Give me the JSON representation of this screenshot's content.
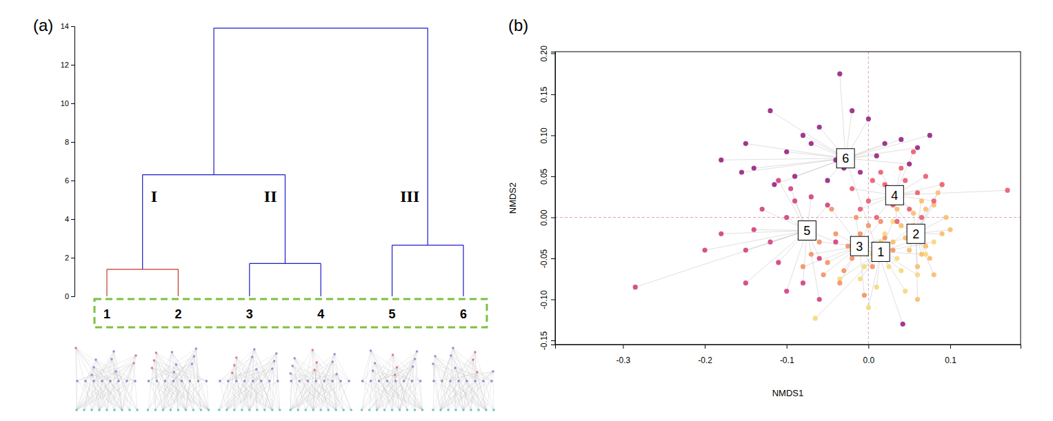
{
  "chart_data": [
    {
      "type": "dendrogram",
      "title": "(a)",
      "color": "#1a1acc",
      "ylim": [
        0,
        14
      ],
      "yticks": [
        0,
        2,
        4,
        6,
        8,
        10,
        12,
        14
      ],
      "tree": {
        "height": 13.9,
        "children": [
          {
            "height": 6.3,
            "children": [
              {
                "height": 1.4,
                "label": "I",
                "color": "#c0392b",
                "children": [
                  "1",
                  "2"
                ]
              },
              {
                "height": 1.7,
                "label": "II",
                "children": [
                  "3",
                  "4"
                ]
              }
            ]
          },
          {
            "height": 2.65,
            "label": "III",
            "children": [
              "5",
              "6"
            ]
          }
        ]
      }
    },
    {
      "type": "scatter",
      "title": "(b)",
      "x_label": "NMDS1",
      "y_label": "NMDS2",
      "xlim": [
        -0.383,
        0.186
      ],
      "xticks": [
        -0.3,
        -0.2,
        -0.1,
        {
          "value": 0,
          "label": "0.0"
        },
        0.1
      ],
      "ylim": [
        -0.155,
        0.202
      ],
      "yticks": [
        -0.15,
        {
          "value": -0.1,
          "label": "-0.10"
        },
        -0.05,
        {
          "value": 0,
          "label": "0.00"
        },
        0.05,
        {
          "value": 0.1,
          "label": "0.10"
        },
        0.15,
        {
          "value": 0.2,
          "label": "0.20"
        }
      ],
      "ref_lines": [
        {
          "axis": "x",
          "value": 0
        },
        {
          "axis": "y",
          "value": 0
        }
      ],
      "marker": "circle",
      "series": [
        {
          "name": "1",
          "color": "#f6dc86",
          "centroid_x": 0.015,
          "centroid_y": -0.042,
          "x": [
            0.02,
            0.035,
            -0.005,
            0.05,
            0.01,
            0.06,
            -0.02,
            0.03,
            0.045,
            0.0,
            0.07,
            0.015,
            -0.01,
            0.025,
            0.055,
            -0.065,
            0.04,
            0.005,
            0.08,
            -0.035
          ],
          "y": [
            -0.02,
            -0.05,
            -0.06,
            -0.03,
            -0.085,
            -0.07,
            -0.04,
            -0.005,
            -0.09,
            -0.11,
            -0.045,
            -0.03,
            -0.075,
            -0.06,
            -0.01,
            -0.123,
            -0.065,
            -0.045,
            -0.03,
            -0.075
          ]
        },
        {
          "name": "2",
          "color": "#f9c27a",
          "centroid_x": 0.058,
          "centroid_y": -0.02,
          "x": [
            0.07,
            0.09,
            0.05,
            0.085,
            0.06,
            0.095,
            0.04,
            0.075,
            0.065,
            0.1,
            0.03,
            0.08,
            0.055,
            0.045,
            0.09,
            0.035,
            0.07,
            0.06,
            0.08,
            0.065
          ],
          "y": [
            0.01,
            -0.02,
            -0.04,
            0.03,
            -0.06,
            0.0,
            -0.01,
            -0.05,
            0.02,
            -0.015,
            -0.03,
            -0.07,
            0.005,
            -0.025,
            0.04,
            0.01,
            -0.035,
            -0.1,
            0.015,
            -0.045
          ]
        },
        {
          "name": "3",
          "color": "#f59b72",
          "centroid_x": -0.011,
          "centroid_y": -0.035,
          "x": [
            -0.04,
            -0.02,
            0.0,
            -0.06,
            -0.03,
            0.01,
            -0.05,
            -0.015,
            0.02,
            -0.07,
            -0.035,
            0.005,
            -0.025,
            -0.045,
            0.03,
            -0.01,
            -0.055,
            0.015,
            -0.08,
            -0.005
          ],
          "y": [
            -0.02,
            -0.05,
            -0.01,
            -0.03,
            -0.065,
            -0.045,
            -0.055,
            0.0,
            -0.025,
            -0.045,
            -0.08,
            -0.06,
            -0.035,
            0.01,
            -0.04,
            -0.02,
            -0.07,
            -0.005,
            -0.06,
            -0.095
          ]
        },
        {
          "name": "4",
          "color": "#ec6a7d",
          "centroid_x": 0.032,
          "centroid_y": 0.027,
          "x": [
            0.0,
            0.02,
            0.05,
            0.07,
            0.04,
            0.01,
            0.06,
            -0.02,
            0.03,
            0.08,
            0.045,
            0.015,
            0.065,
            -0.01,
            0.055,
            0.025,
            0.09,
            0.035,
            0.17,
            0.005
          ],
          "y": [
            0.02,
            0.04,
            0.01,
            0.05,
            0.06,
            0.0,
            0.03,
            0.035,
            0.015,
            0.02,
            0.045,
            0.055,
            0.0,
            0.01,
            0.08,
            0.025,
            0.04,
            -0.005,
            0.033,
            0.045
          ]
        },
        {
          "name": "5",
          "color": "#d6528a",
          "centroid_x": -0.075,
          "centroid_y": -0.016,
          "x": [
            -0.1,
            -0.12,
            -0.15,
            -0.09,
            -0.06,
            -0.2,
            -0.13,
            -0.08,
            -0.11,
            -0.05,
            -0.285,
            -0.15,
            -0.1,
            -0.07,
            -0.14,
            -0.04,
            -0.095,
            -0.18,
            -0.06,
            -0.11
          ],
          "y": [
            0.0,
            -0.03,
            -0.04,
            0.02,
            -0.05,
            -0.04,
            0.01,
            -0.08,
            -0.055,
            0.015,
            -0.085,
            -0.08,
            -0.09,
            0.025,
            -0.015,
            -0.03,
            0.035,
            -0.02,
            -0.1,
            0.045
          ]
        },
        {
          "name": "6",
          "color": "#a0388f",
          "centroid_x": -0.028,
          "centroid_y": 0.072,
          "x": [
            -0.15,
            -0.12,
            -0.1,
            -0.08,
            -0.06,
            -0.04,
            -0.02,
            0.0,
            0.02,
            0.04,
            -0.035,
            -0.01,
            -0.18,
            -0.14,
            -0.09,
            -0.05,
            0.01,
            0.06,
            -0.07,
            -0.115,
            0.075,
            -0.03,
            0.05,
            -0.155,
            0.042
          ],
          "y": [
            0.09,
            0.13,
            0.08,
            0.1,
            0.11,
            0.07,
            0.13,
            0.12,
            0.09,
            0.095,
            0.175,
            0.055,
            0.07,
            0.06,
            0.05,
            0.045,
            0.075,
            0.085,
            0.09,
            0.04,
            0.1,
            0.06,
            0.065,
            0.055,
            -0.13
          ]
        }
      ]
    }
  ]
}
